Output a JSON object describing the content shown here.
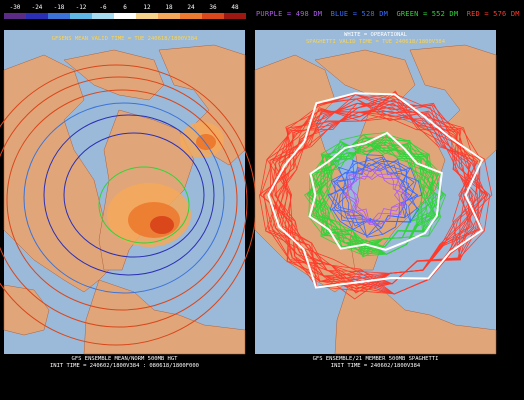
{
  "colorbar": {
    "ticks": [
      "-30",
      "-24",
      "-18",
      "-12",
      "-6",
      "6",
      "12",
      "18",
      "24",
      "36",
      "48"
    ],
    "colors": [
      "#5b2c86",
      "#2a2fb5",
      "#3b73d8",
      "#5fb7e6",
      "#a7dbf2",
      "#ffffff",
      "#f6d38a",
      "#f4a85a",
      "#ec7a2f",
      "#d9471b",
      "#9e1710"
    ]
  },
  "legend": {
    "purple": "PURPLE = 498 DM",
    "blue": "BLUE = 528 DM",
    "green": "GREEN = 552 DM",
    "red": "RED = 576 DM",
    "white": "WHITE = OPERATIONAL"
  },
  "left_panel": {
    "title": "GFSENS MEAN VALID TIME = TUE 240618/1800V384",
    "footer_line1": "GFS ENSEMBLE MEAN/NORM 500MB HGT",
    "footer_line2": "INIT TIME = 240602/1800V384 : 080618/1800F000"
  },
  "right_panel": {
    "title_line1": "WHITE = OPERATIONAL",
    "title_line2": "SPAGHETTI VALID TIME = TUE 240618/1800V384",
    "footer_line1": "GFS ENSEMBLE/21 MEMBER 500MB SPAGHETTI",
    "footer_line2": "INIT TIME = 240602/1800V384"
  },
  "colors": {
    "ocean": "#9bb9d8",
    "land": "#e0a67a",
    "background": "#000000",
    "legend_purple": "#b05cf0",
    "legend_blue": "#3a6cff",
    "legend_green": "#2fd43a",
    "legend_red": "#ff3a2a",
    "title_yellow": "#ffd54a"
  }
}
